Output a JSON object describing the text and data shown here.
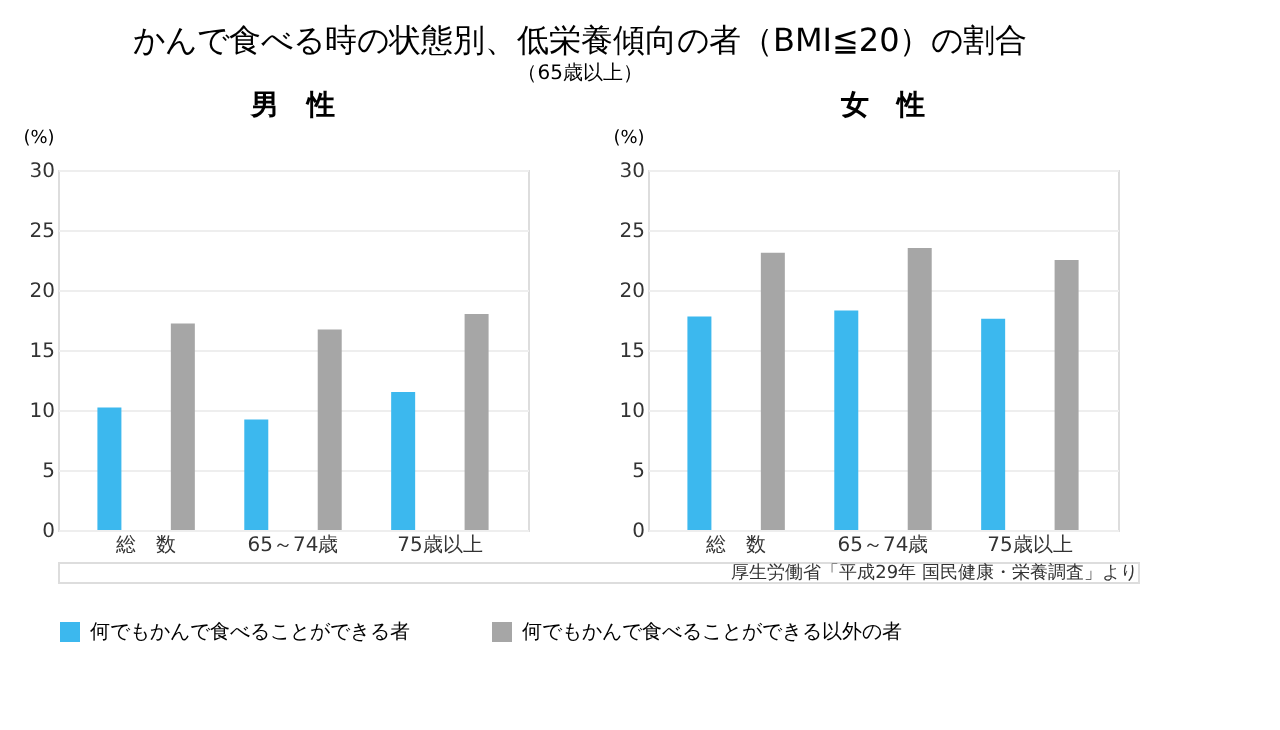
{
  "chart_data": [
    {
      "type": "bar",
      "title": "男　性",
      "annotations": [
        "かんで食べる時の状態別、低栄養傾向の者（BMI≦20）の割合",
        "（65歳以上）"
      ],
      "ylabel": "(%)",
      "categories": [
        "総　数",
        "65～74歳",
        "75歳以上"
      ],
      "series": [
        {
          "name": "何でもかんで食べることができる者",
          "color": "#3cb8ee",
          "values": [
            10.2,
            9.2,
            11.5
          ]
        },
        {
          "name": "何でもかんで食べることができる以外の者",
          "color": "#a6a6a6",
          "values": [
            17.2,
            16.7,
            18.0
          ]
        }
      ],
      "ylim": [
        0,
        30
      ],
      "yticks": [
        0,
        5,
        10,
        15,
        20,
        25,
        30
      ],
      "grid": "y",
      "legend": "bottom"
    },
    {
      "type": "bar",
      "title": "女　性",
      "annotations": [
        "厚生労働省「平成29年 国民健康・栄養調査」より"
      ],
      "ylabel": "(%)",
      "categories": [
        "総　数",
        "65～74歳",
        "75歳以上"
      ],
      "series": [
        {
          "name": "何でもかんで食べることができる者",
          "color": "#3cb8ee",
          "values": [
            17.8,
            18.3,
            17.6
          ]
        },
        {
          "name": "何でもかんで食べることができる以外の者",
          "color": "#a6a6a6",
          "values": [
            23.1,
            23.5,
            22.5
          ]
        }
      ],
      "ylim": [
        0,
        30
      ],
      "yticks": [
        0,
        5,
        10,
        15,
        20,
        25,
        30
      ],
      "grid": "y",
      "legend": "bottom"
    }
  ]
}
